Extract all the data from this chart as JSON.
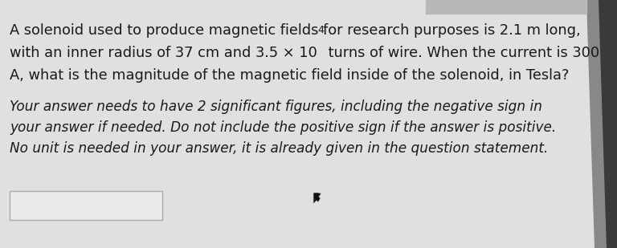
{
  "bg_color": "#c8c8c8",
  "content_bg": "#e0e0e0",
  "line1": "A solenoid used to produce magnetic fields for research purposes is 2.1 m long,",
  "line2a": "with an inner radius of 37 cm and 3.5 × 10",
  "line2_sup": "4",
  "line2b": " turns of wire. When the current is 300",
  "line3": "A, what is the magnitude of the magnetic field inside of the solenoid, in Tesla?",
  "line4": "Your answer needs to have 2 significant figures, including the negative sign in",
  "line5": "your answer if needed. Do not include the positive sign if the answer is positive.",
  "line6": "No unit is needed in your answer, it is already given in the question statement.",
  "fs_q": 12.8,
  "fs_it": 12.2,
  "fs_sup": 9.0,
  "text_color": "#1a1a1a",
  "box_edge": "#aaaaaa",
  "box_face": "#ebebeb"
}
